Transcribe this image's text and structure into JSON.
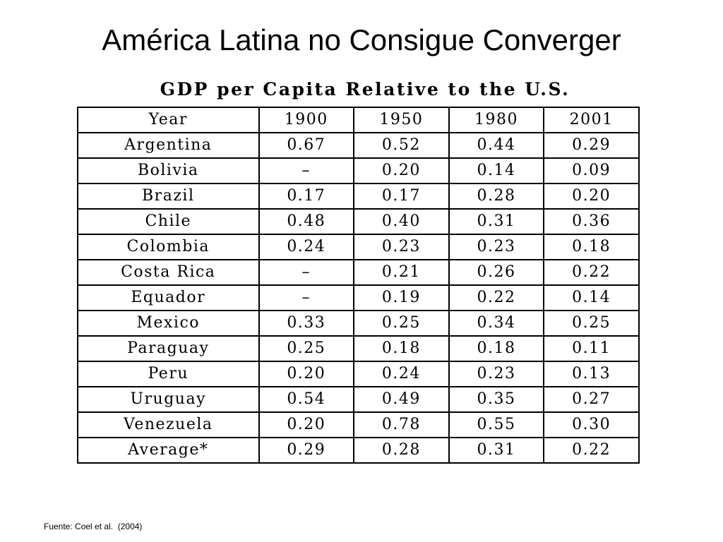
{
  "slide": {
    "title": "América Latina no Consigue Converger",
    "source": "Fuente: Coel et al.  (2004)"
  },
  "table": {
    "caption": "GDP per Capita Relative to the U.S.",
    "headers": [
      "Year",
      "1900",
      "1950",
      "1980",
      "2001"
    ],
    "rows": [
      [
        "Argentina",
        "0.67",
        "0.52",
        "0.44",
        "0.29"
      ],
      [
        "Bolivia",
        "–",
        "0.20",
        "0.14",
        "0.09"
      ],
      [
        "Brazil",
        "0.17",
        "0.17",
        "0.28",
        "0.20"
      ],
      [
        "Chile",
        "0.48",
        "0.40",
        "0.31",
        "0.36"
      ],
      [
        "Colombia",
        "0.24",
        "0.23",
        "0.23",
        "0.18"
      ],
      [
        "Costa Rica",
        "–",
        "0.21",
        "0.26",
        "0.22"
      ],
      [
        "Equador",
        "–",
        "0.19",
        "0.22",
        "0.14"
      ],
      [
        "Mexico",
        "0.33",
        "0.25",
        "0.34",
        "0.25"
      ],
      [
        "Paraguay",
        "0.25",
        "0.18",
        "0.18",
        "0.11"
      ],
      [
        "Peru",
        "0.20",
        "0.24",
        "0.23",
        "0.13"
      ],
      [
        "Uruguay",
        "0.54",
        "0.49",
        "0.35",
        "0.27"
      ],
      [
        "Venezuela",
        "0.20",
        "0.78",
        "0.55",
        "0.30"
      ],
      [
        "Average*",
        "0.29",
        "0.28",
        "0.31",
        "0.22"
      ]
    ]
  }
}
